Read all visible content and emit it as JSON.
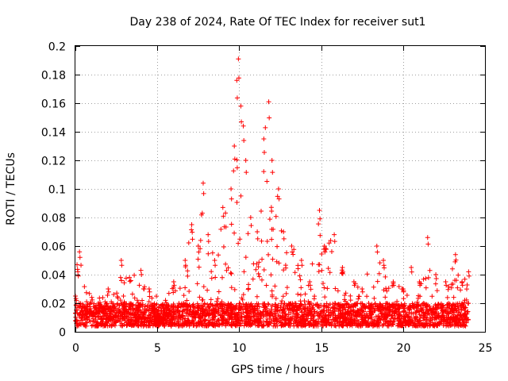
{
  "chart_data": {
    "type": "scatter",
    "title": "Day 238 of 2024, Rate Of TEC Index for receiver sut1",
    "xlabel": "GPS time / hours",
    "ylabel": "ROTI / TECUs",
    "xlim": [
      0,
      25
    ],
    "ylim": [
      0,
      0.2
    ],
    "x_ticks": [
      "0",
      "5",
      "10",
      "15",
      "20",
      "25"
    ],
    "y_ticks": [
      "0",
      "0.02",
      "0.04",
      "0.06",
      "0.08",
      "0.1",
      "0.12",
      "0.14",
      "0.16",
      "0.18",
      "0.2"
    ],
    "grid": true,
    "marker": "+",
    "color": "#ff0000",
    "series": [
      {
        "name": "sut1",
        "profile_note": "dense band of ROTI samples (24 h, 0–24 GPS hours); listed points are representative upper envelope / notable peaks",
        "base_band": [
          0.004,
          0.02
        ],
        "envelope": [
          {
            "x": 0.0,
            "y": 0.025
          },
          {
            "x": 0.1,
            "y": 0.047
          },
          {
            "x": 0.15,
            "y": 0.042
          },
          {
            "x": 0.25,
            "y": 0.056
          },
          {
            "x": 1.0,
            "y": 0.024
          },
          {
            "x": 2.0,
            "y": 0.03
          },
          {
            "x": 2.8,
            "y": 0.05
          },
          {
            "x": 3.3,
            "y": 0.038
          },
          {
            "x": 4.0,
            "y": 0.043
          },
          {
            "x": 4.5,
            "y": 0.03
          },
          {
            "x": 5.5,
            "y": 0.022
          },
          {
            "x": 6.0,
            "y": 0.035
          },
          {
            "x": 6.7,
            "y": 0.05
          },
          {
            "x": 7.1,
            "y": 0.075
          },
          {
            "x": 7.5,
            "y": 0.06
          },
          {
            "x": 7.8,
            "y": 0.104
          },
          {
            "x": 8.1,
            "y": 0.068
          },
          {
            "x": 8.5,
            "y": 0.05
          },
          {
            "x": 9.0,
            "y": 0.087
          },
          {
            "x": 9.5,
            "y": 0.1
          },
          {
            "x": 9.7,
            "y": 0.13
          },
          {
            "x": 9.85,
            "y": 0.176
          },
          {
            "x": 9.95,
            "y": 0.191
          },
          {
            "x": 10.1,
            "y": 0.158
          },
          {
            "x": 10.25,
            "y": 0.144
          },
          {
            "x": 10.4,
            "y": 0.12
          },
          {
            "x": 10.7,
            "y": 0.08
          },
          {
            "x": 11.1,
            "y": 0.07
          },
          {
            "x": 11.5,
            "y": 0.135
          },
          {
            "x": 11.8,
            "y": 0.161
          },
          {
            "x": 12.0,
            "y": 0.12
          },
          {
            "x": 12.4,
            "y": 0.1
          },
          {
            "x": 12.7,
            "y": 0.07
          },
          {
            "x": 13.2,
            "y": 0.06
          },
          {
            "x": 13.8,
            "y": 0.05
          },
          {
            "x": 14.3,
            "y": 0.035
          },
          {
            "x": 14.9,
            "y": 0.085
          },
          {
            "x": 15.2,
            "y": 0.06
          },
          {
            "x": 15.8,
            "y": 0.068
          },
          {
            "x": 16.3,
            "y": 0.045
          },
          {
            "x": 17.0,
            "y": 0.035
          },
          {
            "x": 17.5,
            "y": 0.03
          },
          {
            "x": 18.4,
            "y": 0.06
          },
          {
            "x": 18.8,
            "y": 0.05
          },
          {
            "x": 19.4,
            "y": 0.035
          },
          {
            "x": 20.0,
            "y": 0.03
          },
          {
            "x": 20.5,
            "y": 0.045
          },
          {
            "x": 21.0,
            "y": 0.035
          },
          {
            "x": 21.5,
            "y": 0.066
          },
          {
            "x": 22.0,
            "y": 0.04
          },
          {
            "x": 22.6,
            "y": 0.035
          },
          {
            "x": 23.2,
            "y": 0.054
          },
          {
            "x": 23.6,
            "y": 0.035
          },
          {
            "x": 24.0,
            "y": 0.042
          }
        ]
      }
    ]
  }
}
